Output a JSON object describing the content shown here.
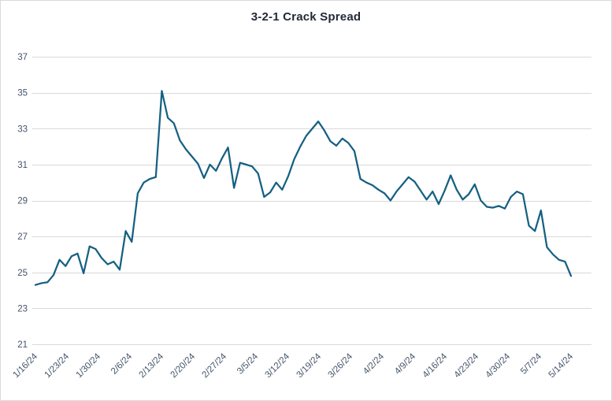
{
  "figure": {
    "title": "3-2-1 Crack Spread"
  },
  "colors": {
    "line": "#156082",
    "grid": "#d9d9d9",
    "axis_text": "#44546a",
    "title_text": "#222a35",
    "figure_border": "#d9d9d9",
    "background": "#ffffff"
  },
  "chart_data": {
    "type": "line",
    "title": "3-2-1 Crack Spread",
    "xlabel": "",
    "ylabel": "",
    "ylim": [
      21,
      37
    ],
    "y_ticks": [
      21,
      23,
      25,
      27,
      29,
      31,
      33,
      35,
      37
    ],
    "grid": "horizontal",
    "legend": "none",
    "x_tick_labels": [
      "1/16/24",
      "1/23/24",
      "1/30/24",
      "2/6/24",
      "2/13/24",
      "2/20/24",
      "2/27/24",
      "3/5/24",
      "3/12/24",
      "3/19/24",
      "3/26/24",
      "4/2/24",
      "4/9/24",
      "4/16/24",
      "4/23/24",
      "4/30/24",
      "5/7/24",
      "5/14/24"
    ],
    "series": [
      {
        "name": "3-2-1 Crack Spread",
        "values": [
          24.3,
          24.4,
          24.45,
          24.85,
          25.7,
          25.35,
          25.9,
          26.05,
          24.95,
          26.45,
          26.3,
          25.8,
          25.45,
          25.6,
          25.15,
          27.3,
          26.7,
          29.4,
          30.0,
          30.2,
          30.3,
          35.1,
          33.6,
          33.3,
          32.35,
          31.85,
          31.45,
          31.05,
          30.25,
          31.0,
          30.65,
          31.35,
          31.95,
          29.7,
          31.1,
          31.0,
          30.9,
          30.5,
          29.2,
          29.45,
          30.0,
          29.6,
          30.35,
          31.3,
          32.0,
          32.6,
          33.0,
          33.4,
          32.9,
          32.3,
          32.05,
          32.45,
          32.2,
          31.75,
          30.2,
          30.0,
          29.85,
          29.6,
          29.4,
          29.0,
          29.5,
          29.9,
          30.3,
          30.05,
          29.55,
          29.05,
          29.5,
          28.8,
          29.55,
          30.4,
          29.6,
          29.05,
          29.35,
          29.9,
          29.0,
          28.65,
          28.6,
          28.7,
          28.55,
          29.2,
          29.5,
          29.35,
          27.6,
          27.3,
          28.45,
          26.4,
          26.0,
          25.7,
          25.6,
          24.8
        ]
      }
    ]
  }
}
